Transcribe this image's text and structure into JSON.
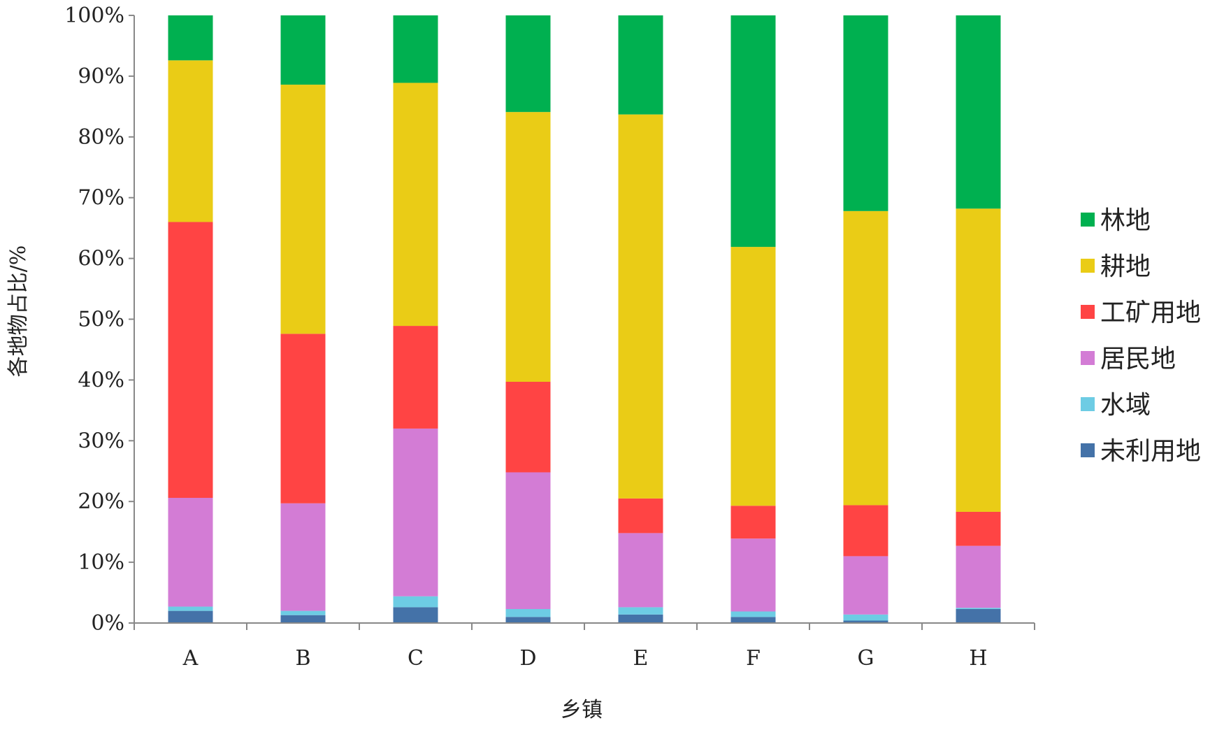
{
  "chart_data": {
    "type": "bar",
    "stacked": true,
    "percent": true,
    "categories": [
      "A",
      "B",
      "C",
      "D",
      "E",
      "F",
      "G",
      "H"
    ],
    "xlabel": "乡镇",
    "ylabel": "各地物占比/%",
    "ylim": [
      0,
      100
    ],
    "yticks": [
      "0%",
      "10%",
      "20%",
      "30%",
      "40%",
      "50%",
      "60%",
      "70%",
      "80%",
      "90%",
      "100%"
    ],
    "grid": false,
    "legend_position": "right",
    "series": [
      {
        "name": "未利用地",
        "color": "#4472A8",
        "values": [
          2.0,
          1.3,
          2.6,
          1.0,
          1.4,
          1.0,
          0.4,
          2.3
        ]
      },
      {
        "name": "水域",
        "color": "#6DCCE4",
        "values": [
          0.7,
          0.7,
          1.8,
          1.3,
          1.2,
          0.9,
          1.0,
          0.2
        ]
      },
      {
        "name": "居民地",
        "color": "#D37CD5",
        "values": [
          17.9,
          17.7,
          27.6,
          22.5,
          12.2,
          12.0,
          9.6,
          10.2
        ]
      },
      {
        "name": "工矿用地",
        "color": "#FF4444",
        "values": [
          45.4,
          27.9,
          16.9,
          14.9,
          5.7,
          5.4,
          8.4,
          5.6
        ]
      },
      {
        "name": "耕地",
        "color": "#EACC16",
        "values": [
          26.6,
          41.0,
          40.0,
          44.4,
          63.2,
          42.6,
          48.4,
          49.9
        ]
      },
      {
        "name": "林地",
        "color": "#00B050",
        "values": [
          7.4,
          11.4,
          11.1,
          15.9,
          16.3,
          38.1,
          32.2,
          31.8
        ]
      }
    ]
  }
}
